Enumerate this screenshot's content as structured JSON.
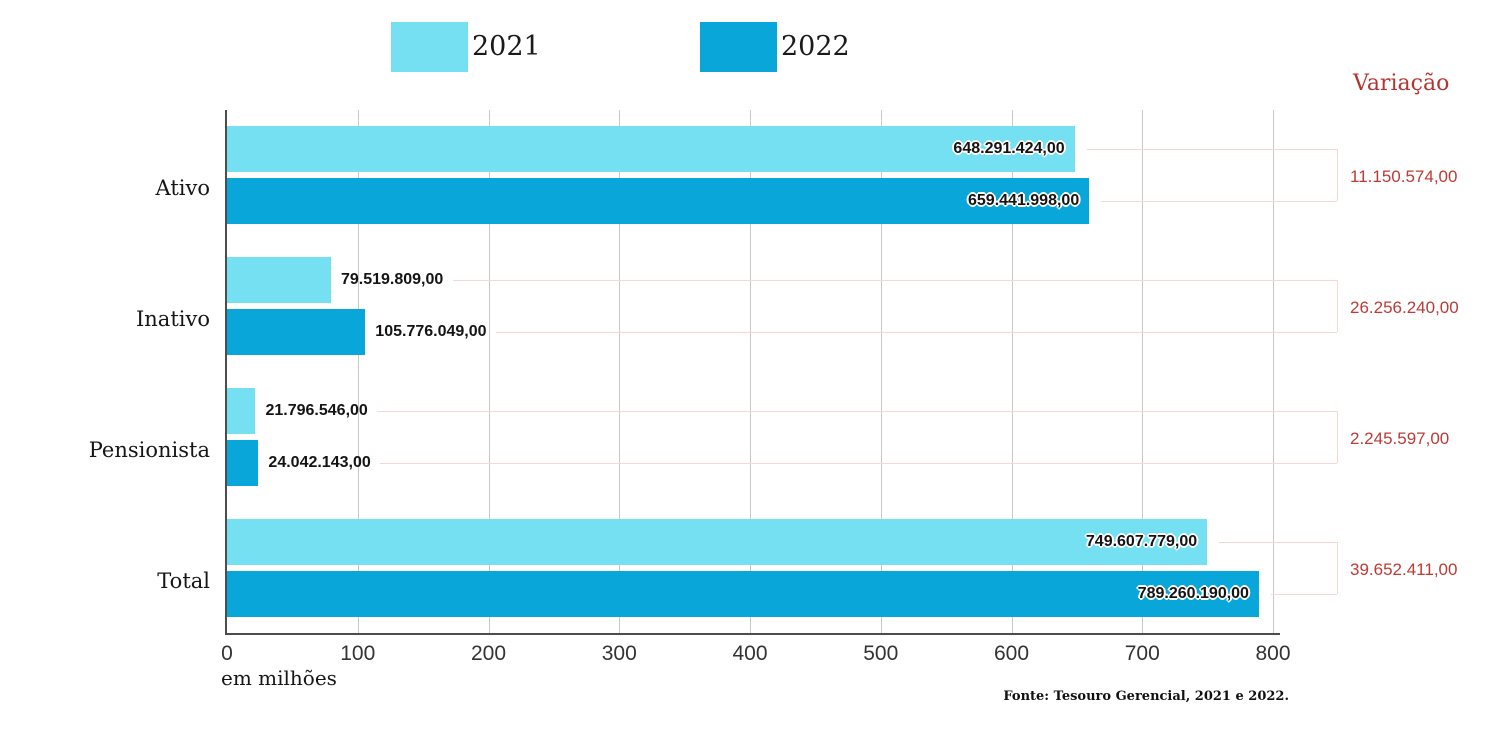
{
  "chart_data": {
    "type": "bar",
    "orientation": "horizontal",
    "categories": [
      "Ativo",
      "Inativo",
      "Pensionista",
      "Total"
    ],
    "series": [
      {
        "name": "2021",
        "color": "#75e0f2",
        "values": [
          648291424.0,
          79519809.0,
          21796546.0,
          749607779.0
        ],
        "value_labels": [
          "648.291.424,00",
          "79.519.809,00",
          "21.796.546,00",
          "749.607.779,00"
        ]
      },
      {
        "name": "2022",
        "color": "#09a6da",
        "values": [
          659441998.0,
          105776049.0,
          24042143.0,
          789260190.0
        ],
        "value_labels": [
          "659.441.998,00",
          "105.776.049,00",
          "24.042.143,00",
          "789.260.190,00"
        ]
      }
    ],
    "variation": {
      "header": "Variação",
      "color": "#bc3b35",
      "values": [
        11150574.0,
        26256240.0,
        2245597.0,
        39652411.0
      ],
      "value_labels": [
        "11.150.574,00",
        "26.256.240,00",
        "2.245.597,00",
        "39.652.411,00"
      ]
    },
    "x_axis": {
      "xlim": [
        0,
        800
      ],
      "ticks": [
        0,
        100,
        200,
        300,
        400,
        500,
        600,
        700,
        800
      ],
      "unit_label": "em milhões",
      "unit_divisor": 1000000
    },
    "grid": true,
    "legend_position": "top",
    "footer": "Fonte: Tesouro Gerencial, 2021 e 2022."
  },
  "colors": {
    "grid": "#c9c9c9",
    "axis": "#4d4d4d",
    "connector": "#f6d7d5",
    "bar_label_text": "#141414"
  }
}
